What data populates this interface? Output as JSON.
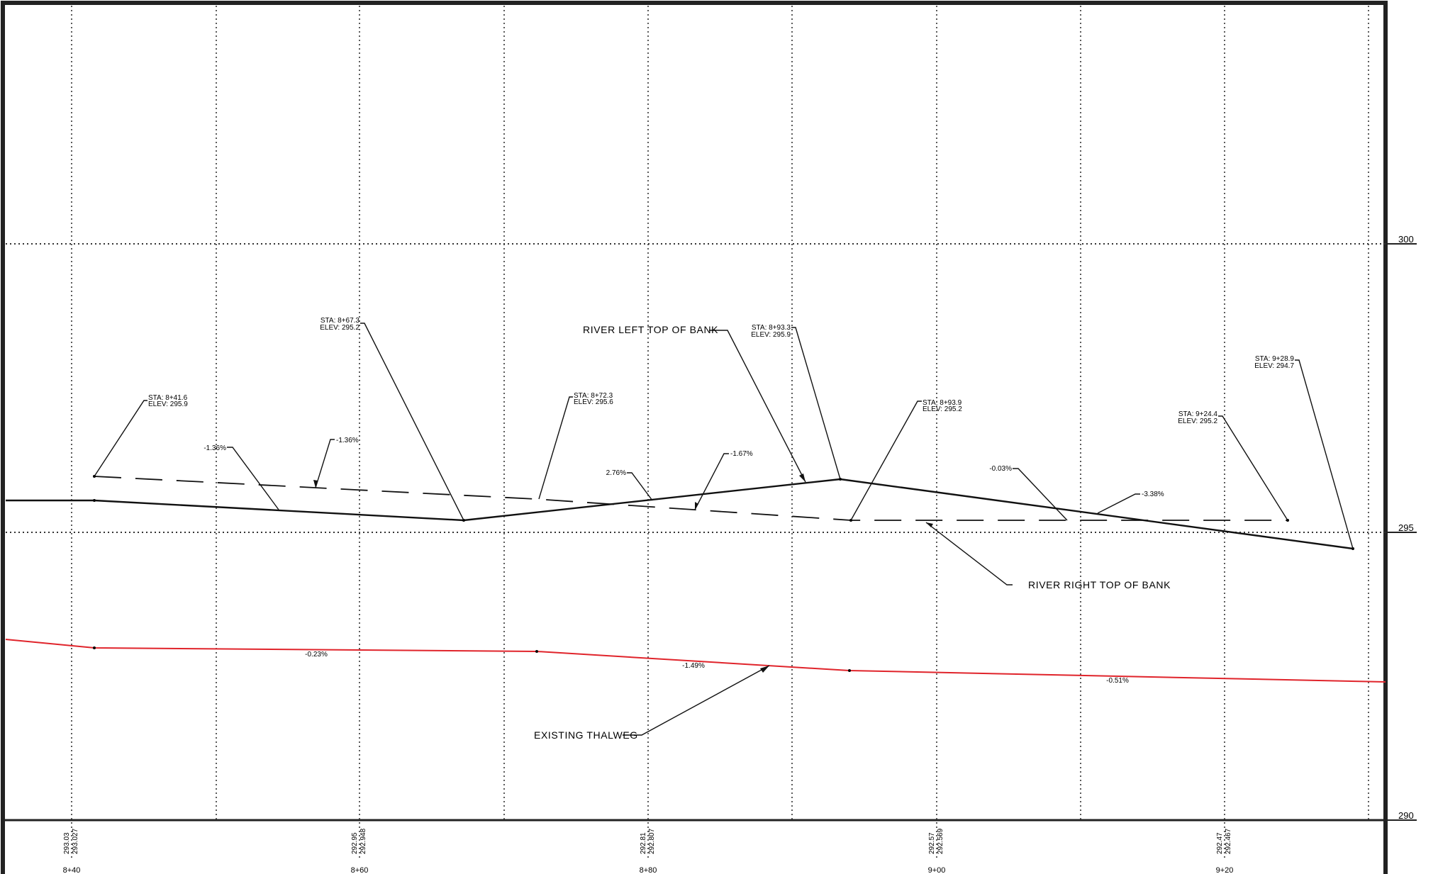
{
  "elevation_labels": [
    "300",
    "295",
    "290"
  ],
  "station_labels": [
    "8+40",
    "8+60",
    "8+80",
    "9+00",
    "9+20"
  ],
  "bottom_values": [
    {
      "top": "293.03",
      "bottom": "293.027"
    },
    {
      "top": "292.95",
      "bottom": "292.948"
    },
    {
      "top": "292.81",
      "bottom": "292.807"
    },
    {
      "top": "292.57",
      "bottom": "292.569"
    },
    {
      "top": "292.47",
      "bottom": "292.467"
    }
  ],
  "callouts": {
    "left_bank": "RIVER LEFT TOP OF BANK",
    "right_bank": "RIVER RIGHT TOP OF BANK",
    "thalweg": "EXISTING THALWEG"
  },
  "station_notes": [
    {
      "sta": "STA: 8+41.6",
      "elev": "ELEV: 295.9"
    },
    {
      "sta": "STA: 8+67.3",
      "elev": "ELEV: 295.2"
    },
    {
      "sta": "STA: 8+72.3",
      "elev": "ELEV: 295.6"
    },
    {
      "sta": "STA: 8+93.3",
      "elev": "ELEV: 295.9"
    },
    {
      "sta": "STA: 8+93.9",
      "elev": "ELEV: 295.2"
    },
    {
      "sta": "STA: 9+24.4",
      "elev": "ELEV: 295.2"
    },
    {
      "sta": "STA: 9+28.9",
      "elev": "ELEV: 294.7"
    }
  ],
  "slopes": {
    "left_1": "-1.36%",
    "right_1": "-1.36%",
    "left_2": "2.76%",
    "right_2": "-1.67%",
    "right_3": "-0.03%",
    "left_3": "-3.38%",
    "thalweg_1": "-0.23%",
    "thalweg_2": "-1.49%",
    "thalweg_3": "-0.51%"
  },
  "colors": {
    "thalweg": "#e0242b",
    "line": "#000000",
    "grid": "#333333"
  }
}
